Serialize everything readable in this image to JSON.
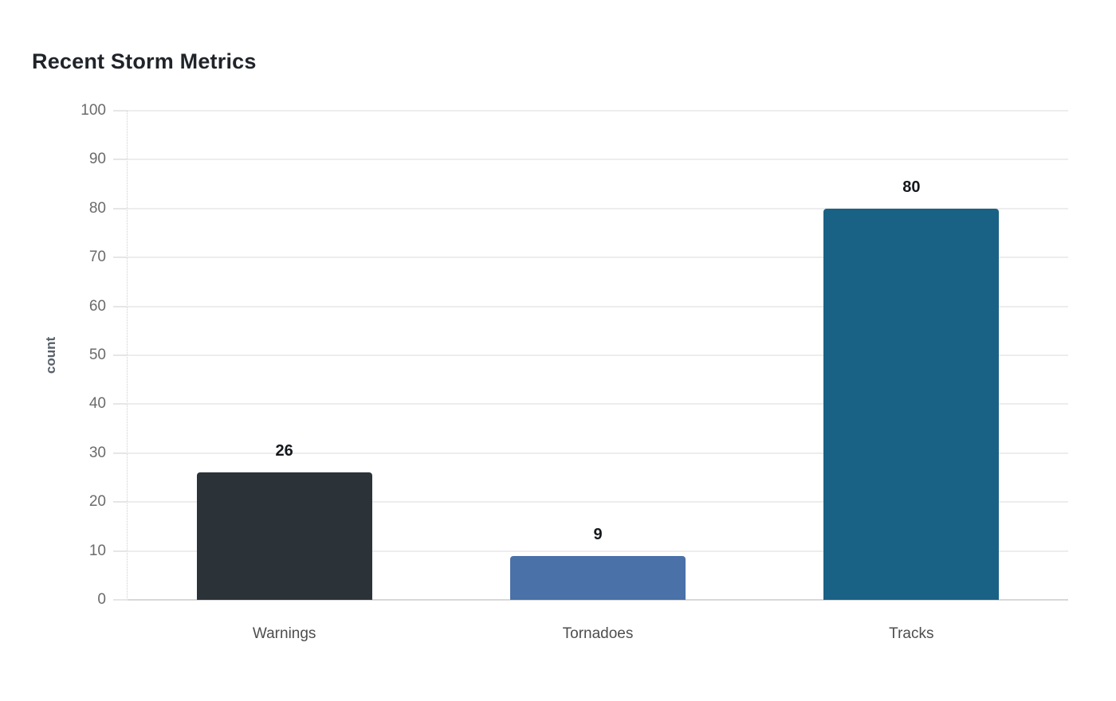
{
  "page": {
    "background": "#ffffff"
  },
  "chart_data": {
    "type": "bar",
    "title": "Recent Storm Metrics",
    "categories": [
      "Warnings",
      "Tornadoes",
      "Tracks"
    ],
    "values": [
      26,
      9,
      80
    ],
    "value_labels": [
      "26",
      "9",
      "80"
    ],
    "bar_colors": [
      "#2b3338",
      "#4a71a8",
      "#1a6186"
    ],
    "xlabel": "",
    "ylabel": "count",
    "ylim": [
      0,
      100
    ],
    "ytick_step": 10,
    "ytick_labels": [
      "0",
      "10",
      "20",
      "30",
      "40",
      "50",
      "60",
      "70",
      "80",
      "90",
      "100"
    ],
    "grid": true,
    "legend": false,
    "style": {
      "grid_color": "#ededed",
      "baseline_color": "#d8d8d8",
      "axis_dotted_color": "#cfcfcf",
      "tick_mark_color": "#e6e6e6",
      "tick_label_color": "#6b6b6b",
      "category_label_color": "#4e4e4e",
      "value_label_color": "#15181c",
      "title_color": "#20242a",
      "ylabel_color": "#57606a"
    }
  }
}
